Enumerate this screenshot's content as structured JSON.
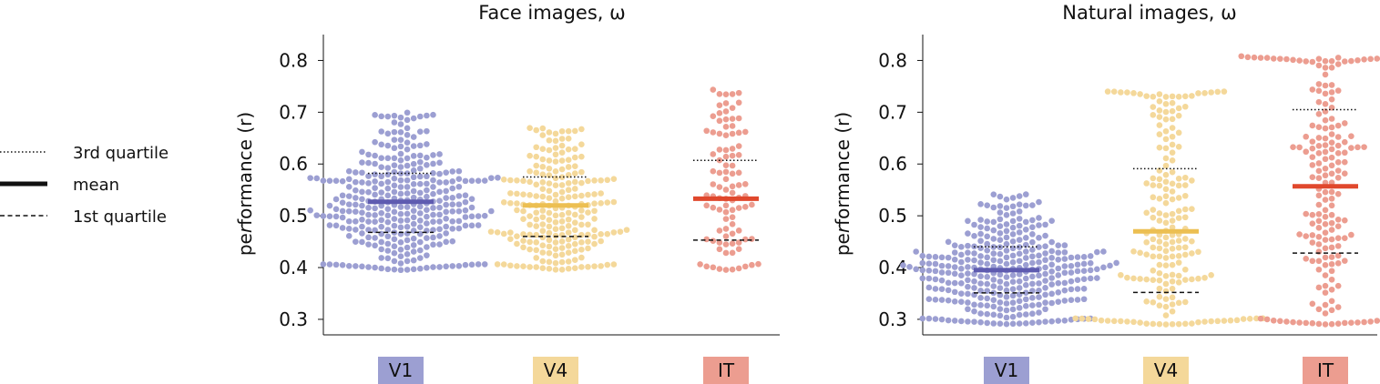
{
  "legend": {
    "items": [
      {
        "label": "3rd quartile",
        "style": "dotted"
      },
      {
        "label": "mean",
        "style": "solid"
      },
      {
        "label": "1st quartile",
        "style": "dashed"
      }
    ]
  },
  "colors": {
    "V1": "#9c9fd2",
    "V1_mean": "#5e5bb0",
    "V4": "#f4d89a",
    "V4_mean": "#ecbf52",
    "IT": "#ec9d90",
    "IT_mean": "#e0482d"
  },
  "chart_data": [
    {
      "type": "scatter",
      "subtype": "beeswarm",
      "title": "Face images, ω",
      "ylabel": "performance (r)",
      "ylabel_italic_part": "r",
      "ylim": [
        0.27,
        0.85
      ],
      "yticks": [
        0.3,
        0.4,
        0.5,
        0.6,
        0.7,
        0.8
      ],
      "categories": [
        "V1",
        "V4",
        "IT"
      ],
      "series": [
        {
          "category": "V1",
          "n": 330,
          "min": 0.395,
          "max": 0.7,
          "mean": 0.527,
          "q1": 0.468,
          "q3": 0.582
        },
        {
          "category": "V4",
          "n": 220,
          "min": 0.395,
          "max": 0.67,
          "mean": 0.52,
          "q1": 0.46,
          "q3": 0.575
        },
        {
          "category": "IT",
          "n": 95,
          "min": 0.395,
          "max": 0.745,
          "mean": 0.533,
          "q1": 0.453,
          "q3": 0.607
        }
      ]
    },
    {
      "type": "scatter",
      "subtype": "beeswarm",
      "title": "Natural images, ω",
      "ylabel": "performance (r)",
      "ylabel_italic_part": "r",
      "ylim": [
        0.27,
        0.85
      ],
      "yticks": [
        0.3,
        0.4,
        0.5,
        0.6,
        0.7,
        0.8
      ],
      "categories": [
        "V1",
        "V4",
        "IT"
      ],
      "series": [
        {
          "category": "V1",
          "n": 330,
          "min": 0.29,
          "max": 0.545,
          "mean": 0.395,
          "q1": 0.351,
          "q3": 0.44
        },
        {
          "category": "V4",
          "n": 190,
          "min": 0.29,
          "max": 0.74,
          "mean": 0.47,
          "q1": 0.352,
          "q3": 0.591
        },
        {
          "category": "IT",
          "n": 185,
          "min": 0.29,
          "max": 0.81,
          "mean": 0.557,
          "q1": 0.428,
          "q3": 0.705
        }
      ]
    }
  ]
}
